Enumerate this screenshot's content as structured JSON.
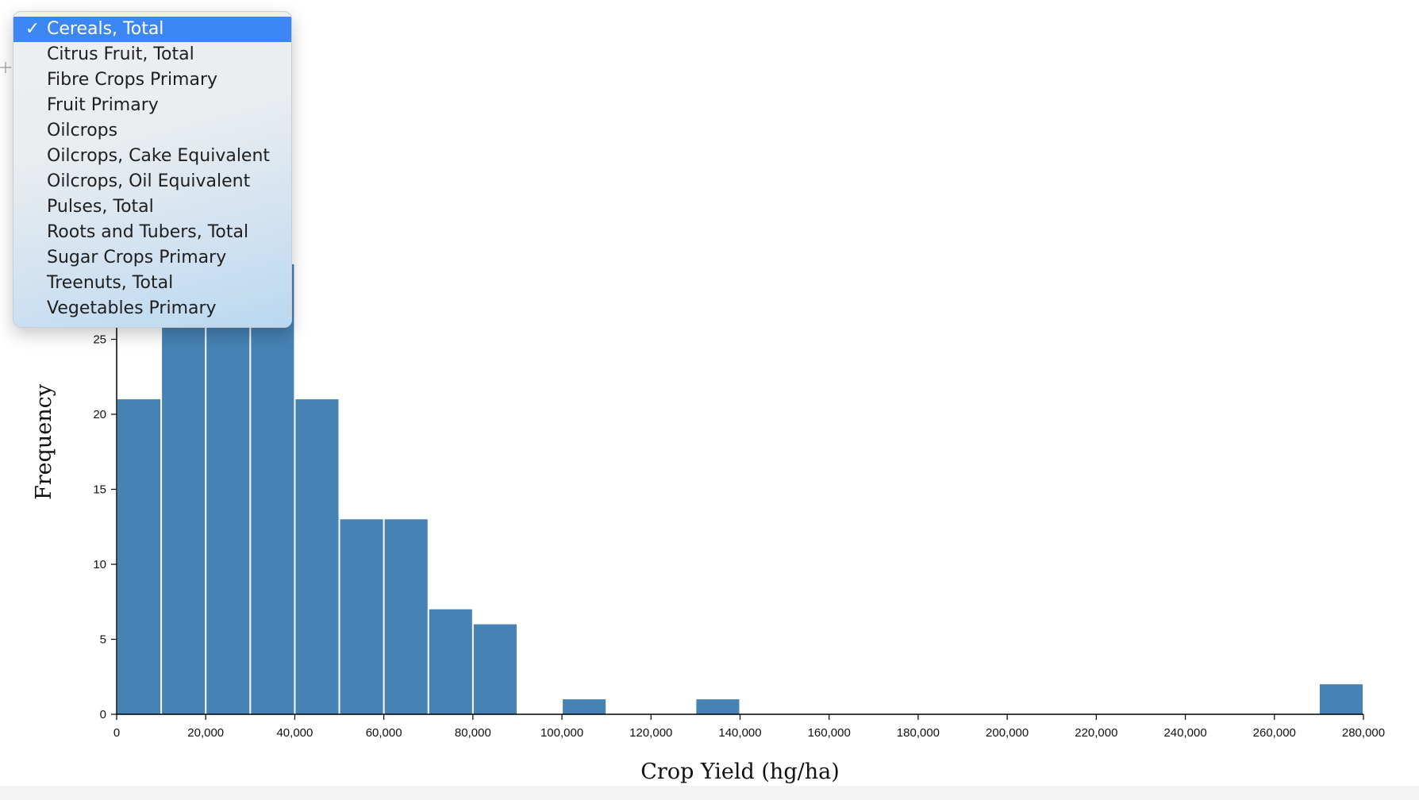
{
  "dropdown": {
    "selected": "Cereals, Total",
    "options": [
      "Cereals, Total",
      "Citrus Fruit, Total",
      "Fibre Crops Primary",
      "Fruit Primary",
      "Oilcrops",
      "Oilcrops, Cake Equivalent",
      "Oilcrops, Oil Equivalent",
      "Pulses, Total",
      "Roots and Tubers, Total",
      "Sugar Crops Primary",
      "Treenuts, Total",
      "Vegetables Primary"
    ]
  },
  "chart_data": {
    "type": "bar",
    "xlabel": "Crop Yield (hg/ha)",
    "ylabel": "Frequency",
    "xlim": [
      0,
      280000
    ],
    "ylim": [
      0,
      30
    ],
    "bin_width": 10000,
    "bins": [
      {
        "x0": 0,
        "x1": 10000,
        "count": 21
      },
      {
        "x0": 10000,
        "x1": 20000,
        "count": 30
      },
      {
        "x0": 20000,
        "x1": 30000,
        "count": 30
      },
      {
        "x0": 30000,
        "x1": 40000,
        "count": 30
      },
      {
        "x0": 40000,
        "x1": 50000,
        "count": 21
      },
      {
        "x0": 50000,
        "x1": 60000,
        "count": 13
      },
      {
        "x0": 60000,
        "x1": 70000,
        "count": 13
      },
      {
        "x0": 70000,
        "x1": 80000,
        "count": 7
      },
      {
        "x0": 80000,
        "x1": 90000,
        "count": 6
      },
      {
        "x0": 100000,
        "x1": 110000,
        "count": 1
      },
      {
        "x0": 130000,
        "x1": 140000,
        "count": 1
      },
      {
        "x0": 270000,
        "x1": 280000,
        "count": 2
      }
    ],
    "x_ticks": [
      {
        "value": 0,
        "label": "0"
      },
      {
        "value": 20000,
        "label": "20,000"
      },
      {
        "value": 40000,
        "label": "40,000"
      },
      {
        "value": 60000,
        "label": "60,000"
      },
      {
        "value": 80000,
        "label": "80,000"
      },
      {
        "value": 100000,
        "label": "100,000"
      },
      {
        "value": 120000,
        "label": "120,000"
      },
      {
        "value": 140000,
        "label": "140,000"
      },
      {
        "value": 160000,
        "label": "160,000"
      },
      {
        "value": 180000,
        "label": "180,000"
      },
      {
        "value": 200000,
        "label": "200,000"
      },
      {
        "value": 220000,
        "label": "220,000"
      },
      {
        "value": 240000,
        "label": "240,000"
      },
      {
        "value": 260000,
        "label": "260,000"
      },
      {
        "value": 280000,
        "label": "280,000"
      }
    ],
    "y_ticks": [
      {
        "value": 0,
        "label": "0"
      },
      {
        "value": 5,
        "label": "5"
      },
      {
        "value": 10,
        "label": "10"
      },
      {
        "value": 15,
        "label": "15"
      },
      {
        "value": 20,
        "label": "20"
      },
      {
        "value": 25,
        "label": "25"
      }
    ],
    "bar_color": "#4682b4",
    "grid": false
  }
}
